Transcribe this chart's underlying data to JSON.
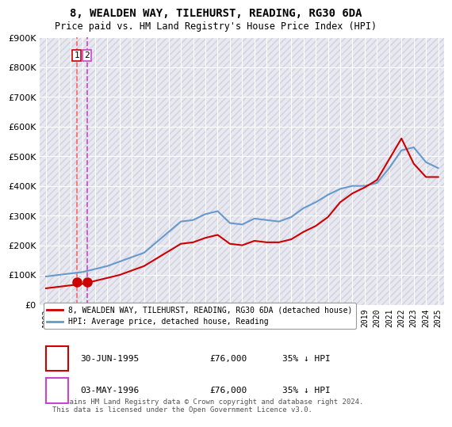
{
  "title": "8, WEALDEN WAY, TILEHURST, READING, RG30 6DA",
  "subtitle": "Price paid vs. HM Land Registry's House Price Index (HPI)",
  "ylabel": "",
  "background_color": "#f0f0f8",
  "plot_bg_color": "#e8e8f0",
  "hatch_color": "#d0d0e0",
  "ylim": [
    0,
    900000
  ],
  "yticks": [
    0,
    100000,
    200000,
    300000,
    400000,
    500000,
    600000,
    700000,
    800000,
    900000
  ],
  "ytick_labels": [
    "£0",
    "£100K",
    "£200K",
    "£300K",
    "£400K",
    "£500K",
    "£600K",
    "£700K",
    "£800K",
    "£900K"
  ],
  "hpi_color": "#6699cc",
  "price_color": "#cc0000",
  "marker_color": "#cc0000",
  "vline_color_1": "#ff4444",
  "vline_color_2": "#cc44cc",
  "sale_dates": [
    1995.5,
    1996.33
  ],
  "sale_prices": [
    76000,
    76000
  ],
  "legend_label_red": "8, WEALDEN WAY, TILEHURST, READING, RG30 6DA (detached house)",
  "legend_label_blue": "HPI: Average price, detached house, Reading",
  "annotation_1": "1",
  "annotation_2": "2",
  "table_data": [
    {
      "num": "1",
      "date": "30-JUN-1995",
      "price": "£76,000",
      "hpi": "35% ↓ HPI"
    },
    {
      "num": "2",
      "date": "03-MAY-1996",
      "price": "£76,000",
      "hpi": "35% ↓ HPI"
    }
  ],
  "footer": "Contains HM Land Registry data © Crown copyright and database right 2024.\nThis data is licensed under the Open Government Licence v3.0.",
  "hpi_x": [
    1993,
    1994,
    1995,
    1996,
    1997,
    1998,
    1999,
    2000,
    2001,
    2002,
    2003,
    2004,
    2005,
    2006,
    2007,
    2008,
    2009,
    2010,
    2011,
    2012,
    2013,
    2014,
    2015,
    2016,
    2017,
    2018,
    2019,
    2020,
    2021,
    2022,
    2023,
    2024,
    2025
  ],
  "hpi_y": [
    95000,
    100000,
    105000,
    110000,
    120000,
    130000,
    145000,
    160000,
    175000,
    210000,
    245000,
    280000,
    285000,
    305000,
    315000,
    275000,
    270000,
    290000,
    285000,
    280000,
    295000,
    325000,
    345000,
    370000,
    390000,
    400000,
    400000,
    410000,
    460000,
    520000,
    530000,
    480000,
    460000
  ],
  "price_x": [
    1993,
    1994,
    1995,
    1996,
    1997,
    1998,
    1999,
    2000,
    2001,
    2002,
    2003,
    2004,
    2005,
    2006,
    2007,
    2008,
    2009,
    2010,
    2011,
    2012,
    2013,
    2014,
    2015,
    2016,
    2017,
    2018,
    2019,
    2020,
    2021,
    2022,
    2023,
    2024,
    2025
  ],
  "price_y": [
    55000,
    60000,
    65000,
    70000,
    80000,
    90000,
    100000,
    115000,
    130000,
    155000,
    180000,
    205000,
    210000,
    225000,
    235000,
    205000,
    200000,
    215000,
    210000,
    210000,
    220000,
    245000,
    265000,
    295000,
    345000,
    375000,
    395000,
    420000,
    490000,
    560000,
    475000,
    430000,
    430000
  ],
  "xlim_left": 1992.5,
  "xlim_right": 2025.5,
  "xticks": [
    1993,
    1994,
    1995,
    1996,
    1997,
    1998,
    1999,
    2000,
    2001,
    2002,
    2003,
    2004,
    2005,
    2006,
    2007,
    2008,
    2009,
    2010,
    2011,
    2012,
    2013,
    2014,
    2015,
    2016,
    2017,
    2018,
    2019,
    2020,
    2021,
    2022,
    2023,
    2024,
    2025
  ]
}
